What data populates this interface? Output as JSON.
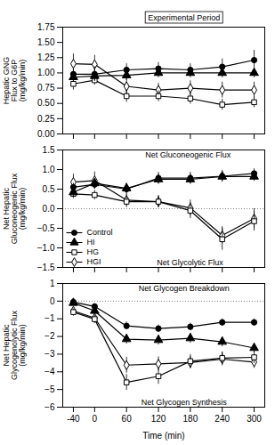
{
  "chart_data": [
    {
      "type": "line",
      "ylabel": "Hepatic GNG\nFlux to G6P\n(mg/kg/min)",
      "x": [
        -40,
        0,
        60,
        120,
        180,
        240,
        300
      ],
      "xlim": [
        -60,
        320
      ],
      "xticks": [
        -40,
        0,
        60,
        120,
        180,
        240,
        300
      ],
      "ylim": [
        0.0,
        1.75
      ],
      "yticks": [
        {
          "value": 0.0,
          "label": "0.00"
        },
        {
          "value": 0.25,
          "label": "0.25"
        },
        {
          "value": 0.5,
          "label": "0.50"
        },
        {
          "value": 0.75,
          "label": "0.75"
        },
        {
          "value": 1.0,
          "label": "1.00"
        },
        {
          "value": 1.25,
          "label": "1.25"
        },
        {
          "value": 1.5,
          "label": "1.50"
        },
        {
          "value": 1.75,
          "label": "1.75"
        }
      ],
      "tick_labels": "y",
      "annotations": [
        "Experimental Period"
      ],
      "series": [
        {
          "name": "Control",
          "color": "black",
          "marker": "circle",
          "line_style": "solid",
          "values": [
            0.98,
            0.98,
            1.05,
            1.07,
            1.05,
            1.1,
            1.21
          ],
          "errors": [
            0.1,
            0.12,
            0.1,
            0.1,
            0.1,
            0.13,
            0.16
          ]
        },
        {
          "name": "HI",
          "color": "black",
          "marker": "triangle",
          "line_style": "solid",
          "values": [
            0.93,
            0.95,
            0.96,
            1.0,
            1.0,
            1.0,
            1.0
          ],
          "errors": [
            0.08,
            0.08,
            0.08,
            0.08,
            0.08,
            0.08,
            0.08
          ]
        },
        {
          "name": "HG",
          "color": "black",
          "marker": "open_square",
          "line_style": "solid",
          "values": [
            0.82,
            0.88,
            0.62,
            0.62,
            0.58,
            0.48,
            0.52
          ],
          "errors": [
            0.1,
            0.08,
            0.1,
            0.09,
            0.09,
            0.09,
            0.09
          ]
        },
        {
          "name": "HGI",
          "color": "black",
          "marker": "open_diamond",
          "line_style": "solid",
          "values": [
            1.15,
            1.14,
            0.78,
            0.72,
            0.75,
            0.72,
            0.72
          ],
          "errors": [
            0.16,
            0.15,
            0.13,
            0.11,
            0.12,
            0.13,
            0.13
          ]
        }
      ]
    },
    {
      "type": "line",
      "ylabel": "Net Hepatic\nGluconeogenic Flux\n(mg/kg/min)",
      "x": [
        -40,
        0,
        60,
        120,
        180,
        240,
        300
      ],
      "xlim": [
        -60,
        320
      ],
      "xticks": [
        -40,
        0,
        60,
        120,
        180,
        240,
        300
      ],
      "ylim": [
        -1.5,
        1.5
      ],
      "yticks": [
        {
          "value": -1.5,
          "label": "−1.5"
        },
        {
          "value": -1.0,
          "label": "−1.0"
        },
        {
          "value": -0.5,
          "label": "−0.5"
        },
        {
          "value": 0.0,
          "label": "0.0"
        },
        {
          "value": 0.5,
          "label": "0.5"
        },
        {
          "value": 1.0,
          "label": "1.0"
        },
        {
          "value": 1.5,
          "label": "1.5"
        }
      ],
      "tick_labels": "y",
      "hline": 0,
      "legend": "lower left",
      "annotations": [
        "Net Gluconeogenic Flux",
        "Net Glycolytic Flux"
      ],
      "series": [
        {
          "name": "Control",
          "color": "black",
          "marker": "circle",
          "line_style": "solid",
          "values": [
            0.55,
            0.62,
            0.5,
            0.78,
            0.78,
            0.83,
            0.9
          ],
          "errors": [
            0.1,
            0.12,
            0.15,
            0.15,
            0.15,
            0.15,
            0.12
          ]
        },
        {
          "name": "HI",
          "color": "black",
          "marker": "triangle",
          "line_style": "solid",
          "values": [
            0.42,
            0.65,
            0.52,
            0.75,
            0.75,
            0.82,
            0.82
          ],
          "errors": [
            0.12,
            0.1,
            0.12,
            0.12,
            0.12,
            0.12,
            0.12
          ]
        },
        {
          "name": "HG",
          "color": "black",
          "marker": "open_square",
          "line_style": "solid",
          "values": [
            0.38,
            0.35,
            0.18,
            0.18,
            -0.05,
            -0.78,
            -0.32
          ],
          "errors": [
            0.12,
            0.12,
            0.15,
            0.15,
            0.2,
            0.28,
            0.25
          ]
        },
        {
          "name": "HGI",
          "color": "black",
          "marker": "open_diamond",
          "line_style": "solid",
          "values": [
            0.68,
            0.72,
            0.22,
            0.18,
            0.02,
            -0.68,
            -0.25
          ],
          "errors": [
            0.2,
            0.22,
            0.15,
            0.15,
            0.2,
            0.22,
            0.25
          ]
        }
      ]
    },
    {
      "type": "line",
      "ylabel": "Net Hepatic\nGlycogenolytic Flux\n(mg/kg/min)",
      "xlabel": "Time (min)",
      "x": [
        -40,
        0,
        60,
        120,
        180,
        240,
        300
      ],
      "xlim": [
        -60,
        320
      ],
      "xticks": [
        -40,
        0,
        60,
        120,
        180,
        240,
        300
      ],
      "ylim": [
        -6,
        1
      ],
      "yticks": [
        {
          "value": -6,
          "label": "−6"
        },
        {
          "value": -5,
          "label": "−5"
        },
        {
          "value": -4,
          "label": "−4"
        },
        {
          "value": -3,
          "label": "−3"
        },
        {
          "value": -2,
          "label": "−2"
        },
        {
          "value": -1,
          "label": "−1"
        },
        0,
        1
      ],
      "hline": 0,
      "annotations": [
        "Net Glycogen Breakdown",
        "Net Glycogen Synthesis"
      ],
      "series": [
        {
          "name": "Control",
          "color": "black",
          "marker": "circle",
          "line_style": "solid",
          "values": [
            -0.05,
            -0.3,
            -1.4,
            -1.55,
            -1.45,
            -1.2,
            -1.2
          ],
          "errors": [
            0.1,
            0.15,
            0.22,
            0.2,
            0.2,
            0.2,
            0.2
          ]
        },
        {
          "name": "HI",
          "color": "black",
          "marker": "triangle",
          "line_style": "solid",
          "values": [
            -0.1,
            -0.55,
            -2.15,
            -2.2,
            -2.1,
            -2.3,
            -2.65
          ],
          "errors": [
            0.12,
            0.18,
            0.28,
            0.28,
            0.28,
            0.28,
            0.28
          ]
        },
        {
          "name": "HG",
          "color": "black",
          "marker": "open_square",
          "line_style": "solid",
          "values": [
            -0.62,
            -1.02,
            -4.6,
            -4.25,
            -3.4,
            -3.22,
            -3.18
          ],
          "errors": [
            0.18,
            0.22,
            0.45,
            0.45,
            0.38,
            0.35,
            0.35
          ]
        },
        {
          "name": "HGI",
          "color": "black",
          "marker": "open_diamond",
          "line_style": "solid",
          "values": [
            -0.55,
            -0.95,
            -3.62,
            -3.55,
            -3.48,
            -3.28,
            -3.45
          ],
          "errors": [
            0.2,
            0.22,
            0.45,
            0.4,
            0.35,
            0.38,
            0.35
          ]
        }
      ]
    }
  ]
}
